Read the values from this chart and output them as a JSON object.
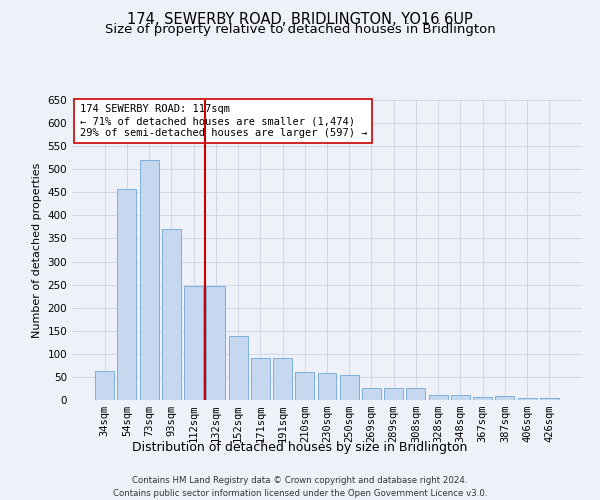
{
  "title": "174, SEWERBY ROAD, BRIDLINGTON, YO16 6UP",
  "subtitle": "Size of property relative to detached houses in Bridlington",
  "xlabel": "Distribution of detached houses by size in Bridlington",
  "ylabel": "Number of detached properties",
  "footer_line1": "Contains HM Land Registry data © Crown copyright and database right 2024.",
  "footer_line2": "Contains public sector information licensed under the Open Government Licence v3.0.",
  "categories": [
    "34sqm",
    "54sqm",
    "73sqm",
    "93sqm",
    "112sqm",
    "132sqm",
    "152sqm",
    "171sqm",
    "191sqm",
    "210sqm",
    "230sqm",
    "250sqm",
    "269sqm",
    "289sqm",
    "308sqm",
    "328sqm",
    "348sqm",
    "367sqm",
    "387sqm",
    "406sqm",
    "426sqm"
  ],
  "values": [
    62,
    457,
    521,
    370,
    248,
    248,
    138,
    92,
    92,
    60,
    58,
    55,
    26,
    26,
    26,
    11,
    11,
    6,
    9,
    4,
    4
  ],
  "bar_color": "#c5d8f0",
  "bar_edge_color": "#6fa8d6",
  "grid_color": "#d0d8e8",
  "vline_index": 4.5,
  "vline_color": "#cc0000",
  "annotation_text": "174 SEWERBY ROAD: 117sqm\n← 71% of detached houses are smaller (1,474)\n29% of semi-detached houses are larger (597) →",
  "annotation_box_color": "#ffffff",
  "annotation_box_edge": "#cc0000",
  "ylim": [
    0,
    650
  ],
  "yticks": [
    0,
    50,
    100,
    150,
    200,
    250,
    300,
    350,
    400,
    450,
    500,
    550,
    600,
    650
  ],
  "background_color": "#eef2f8",
  "title_fontsize": 10.5,
  "subtitle_fontsize": 9.5,
  "xlabel_fontsize": 9,
  "ylabel_fontsize": 8,
  "tick_fontsize": 7.5,
  "annotation_fontsize": 7.5,
  "footer_fontsize": 6.2
}
